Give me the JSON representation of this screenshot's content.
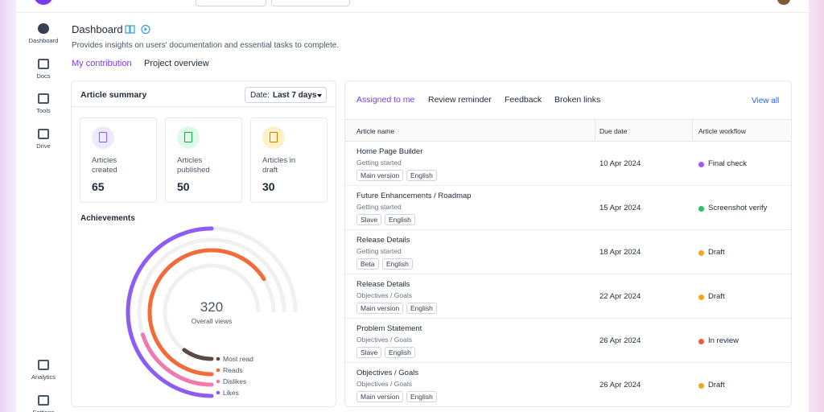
{
  "sidebar": {
    "items": [
      "Dashboard",
      "Docs",
      "Tools",
      "Drive",
      "Analytics",
      "Settings"
    ]
  },
  "header": {
    "title": "Dashboard",
    "subtitle": "Provides insights on users' documentation and essential tasks to complete.",
    "tabs": [
      "My contribution",
      "Project overview"
    ]
  },
  "article_summary": {
    "title": "Article summary",
    "date_filter": {
      "label": "Date:",
      "value": "Last 7 days"
    },
    "stats": [
      {
        "label": "Articles created",
        "value": 65,
        "color": "#8b5cf6",
        "bg": "#ede9fe"
      },
      {
        "label": "Articles published",
        "value": 50,
        "color": "#16a34a",
        "bg": "#dcfce7"
      },
      {
        "label": "Articles in draft",
        "value": 30,
        "color": "#d97706",
        "bg": "#fef3c7"
      }
    ]
  },
  "achievements": {
    "title": "Achievements",
    "total": 320,
    "total_label": "Overall views",
    "series": [
      {
        "name": "Most read",
        "color": "#5b4a40",
        "value": 10
      },
      {
        "name": "Reads",
        "color": "#f26b3a",
        "value": 66
      },
      {
        "name": "Dislikes",
        "color": "#f07ab0",
        "value": 20
      },
      {
        "name": "Likes",
        "color": "#8b5cf6",
        "value": 50
      }
    ]
  },
  "tasks": {
    "tabs": [
      "Assigned to me",
      "Review reminder",
      "Feedback",
      "Broken links"
    ],
    "view_all": "View all",
    "columns": [
      "Article name",
      "Due date",
      "Article workflow"
    ],
    "rows": [
      {
        "name": "Home Page Builder",
        "category": "Getting started",
        "tags": [
          "Main version",
          "English"
        ],
        "due": "10 Apr 2024",
        "status": "Final check",
        "status_color": "#a855f7"
      },
      {
        "name": "Future Enhancements / Roadmap",
        "category": "Getting started",
        "tags": [
          "Slave",
          "English"
        ],
        "due": "15 Apr 2024",
        "status": "Screenshot verify",
        "status_color": "#22c55e"
      },
      {
        "name": "Release Details",
        "category": "Getting started",
        "tags": [
          "Beta",
          "English"
        ],
        "due": "18 Apr 2024",
        "status": "Draft",
        "status_color": "#f5a524"
      },
      {
        "name": "Release Details",
        "category": "Objectives / Goals",
        "tags": [
          "Main version",
          "English"
        ],
        "due": "22 Apr 2024",
        "status": "Draft",
        "status_color": "#f5a524"
      },
      {
        "name": "Problem Statement",
        "category": "Objectives / Goals",
        "tags": [
          "Slave",
          "English"
        ],
        "due": "26 Apr 2024",
        "status": "In review",
        "status_color": "#ef5a3c"
      },
      {
        "name": "Objectives / Goals",
        "category": "Objectives / Goals",
        "tags": [
          "Main version",
          "English"
        ],
        "due": "26 Apr 2024",
        "status": "Draft",
        "status_color": "#f5a524"
      }
    ]
  }
}
